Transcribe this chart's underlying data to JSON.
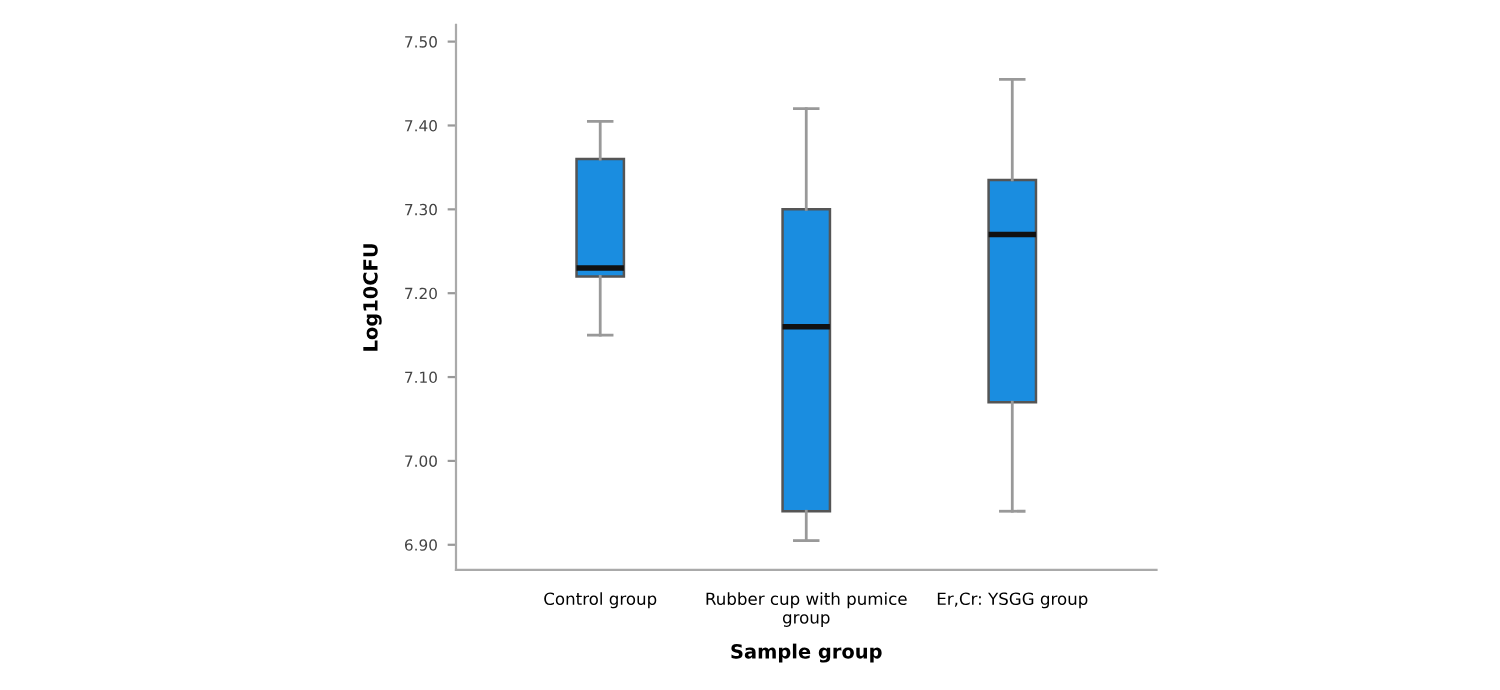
{
  "chart_data": {
    "type": "box",
    "xlabel": "Sample group",
    "ylabel": "Log10CFU",
    "categories": [
      "Control group",
      "Rubber cup with pumice\ngroup",
      "Er,Cr: YSGG group"
    ],
    "boxes": [
      {
        "low": 7.15,
        "q1": 7.22,
        "median": 7.23,
        "q3": 7.36,
        "high": 7.405
      },
      {
        "low": 6.905,
        "q1": 6.94,
        "median": 7.16,
        "q3": 7.3,
        "high": 7.42
      },
      {
        "low": 6.94,
        "q1": 7.07,
        "median": 7.27,
        "q3": 7.335,
        "high": 7.455
      }
    ],
    "color": "#1a8de0",
    "ylim": [
      6.87,
      7.52
    ],
    "yticks": [
      {
        "value": 6.9,
        "label": "6.90"
      },
      {
        "value": 7.0,
        "label": "7.00"
      },
      {
        "value": 7.1,
        "label": "7.10"
      },
      {
        "value": 7.2,
        "label": "7.20"
      },
      {
        "value": 7.3,
        "label": "7.30"
      },
      {
        "value": 7.4,
        "label": "7.40"
      },
      {
        "value": 7.5,
        "label": "7.50"
      }
    ],
    "grid": false
  }
}
